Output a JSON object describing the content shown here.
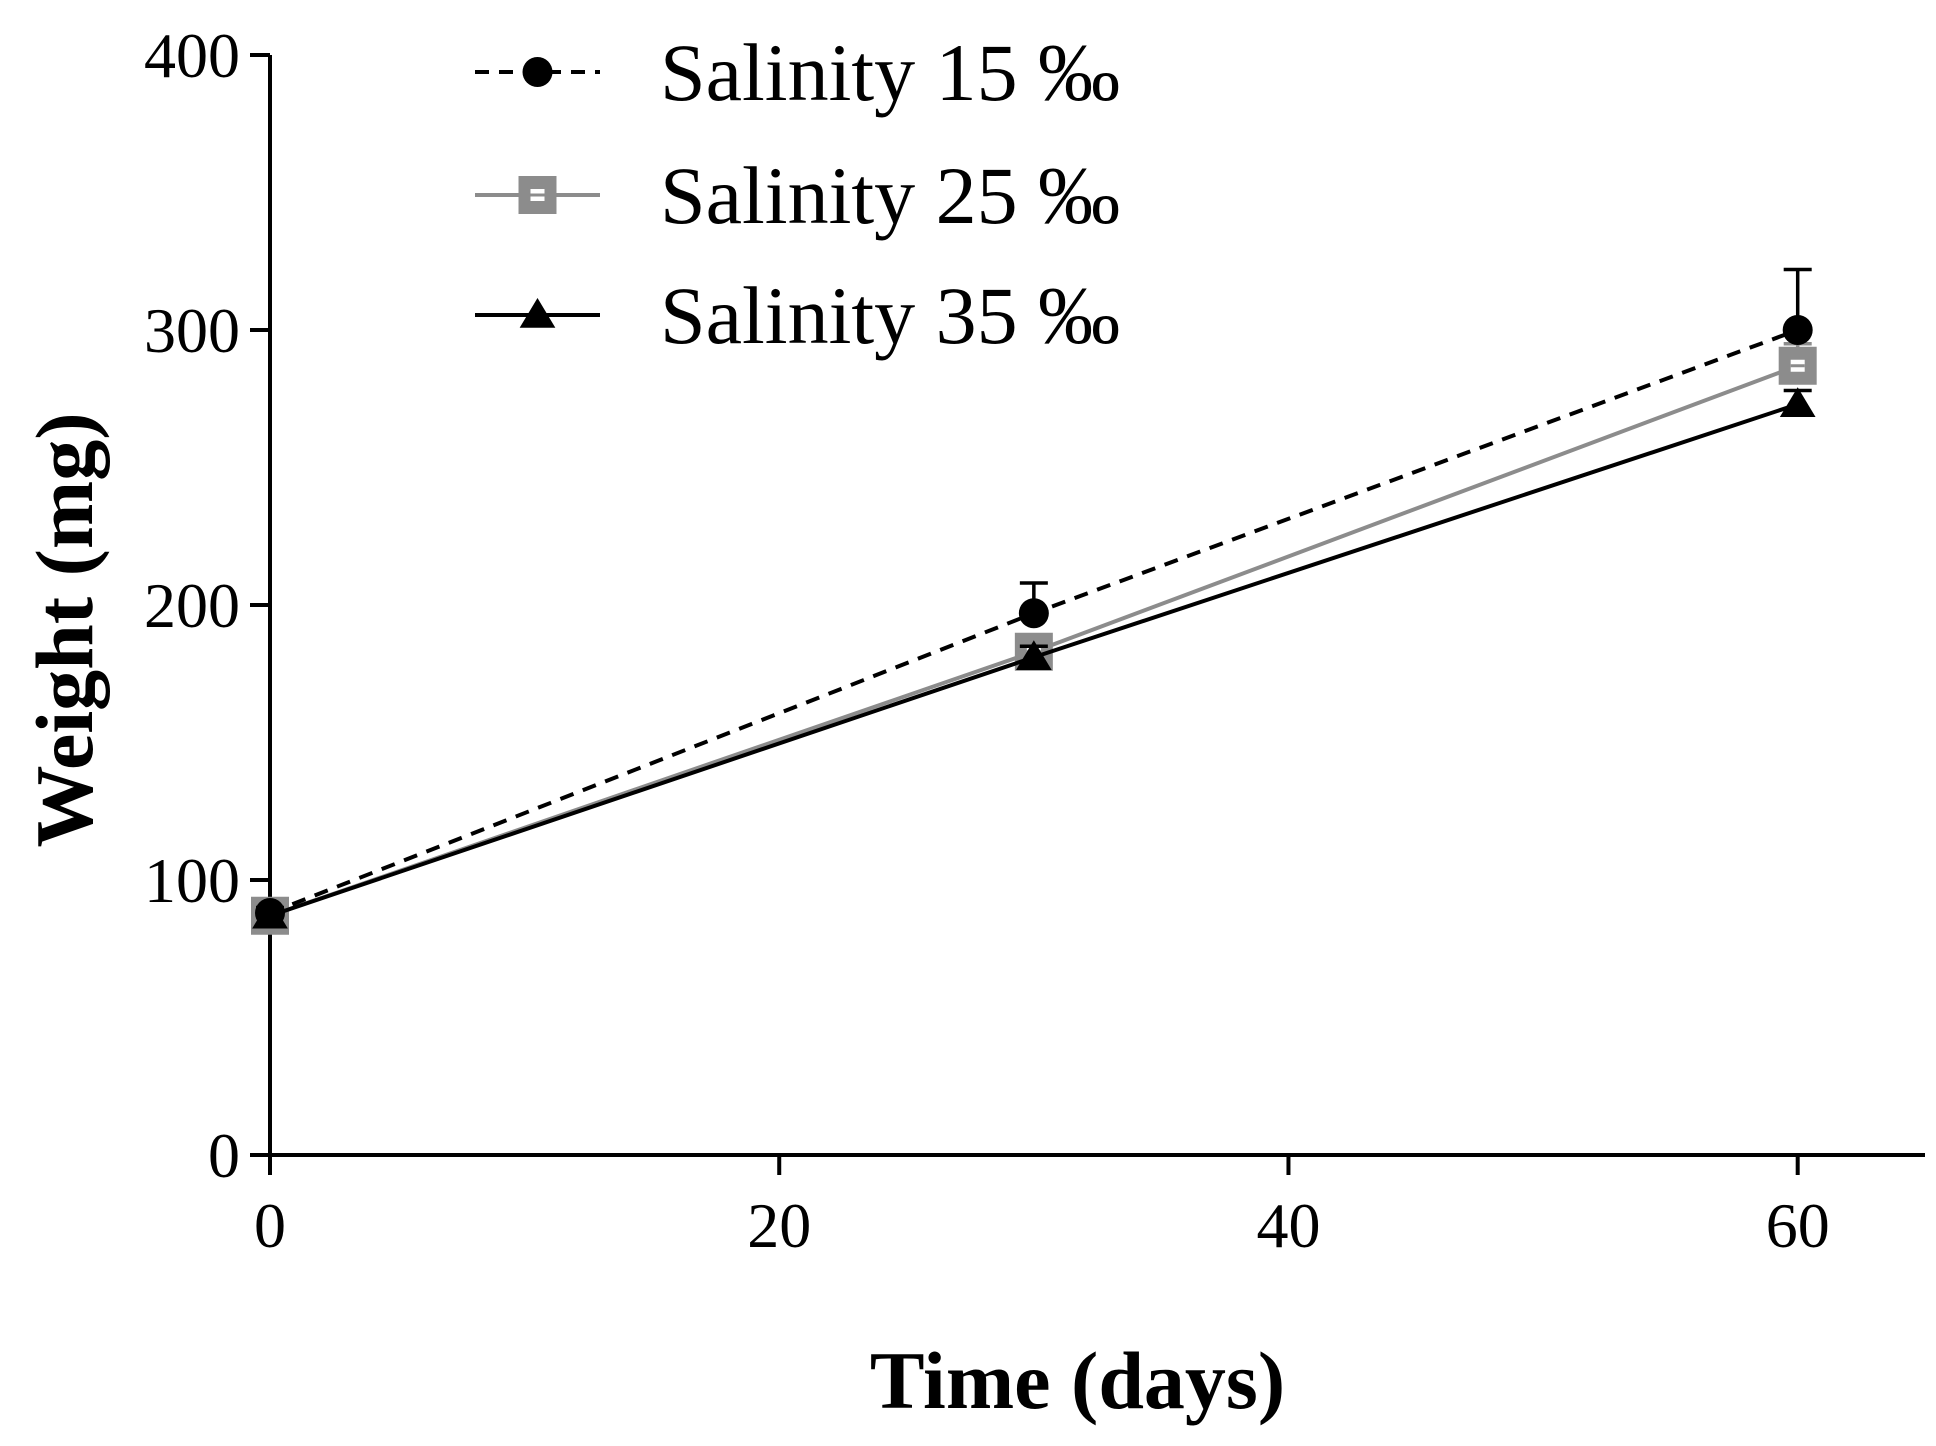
{
  "chart_data": {
    "type": "line",
    "title": "",
    "xlabel": "Time (days)",
    "ylabel": "Weight (mg)",
    "xlim": [
      0,
      65
    ],
    "ylim": [
      0,
      400
    ],
    "xticks": [
      0,
      20,
      40,
      60
    ],
    "yticks": [
      0,
      100,
      200,
      300,
      400
    ],
    "legend_position": "top-center",
    "grid": false,
    "series": [
      {
        "name": "Salinity 15 ‰",
        "x": [
          0,
          30,
          60
        ],
        "y": [
          88,
          197,
          300
        ],
        "error": [
          2,
          11,
          22
        ],
        "marker": "circle",
        "line_style": "dashed",
        "color": "#000000"
      },
      {
        "name": "Salinity 25 ‰",
        "x": [
          0,
          30,
          60
        ],
        "y": [
          87,
          183,
          287
        ],
        "error": [
          2,
          5,
          8
        ],
        "marker": "square",
        "line_style": "solid",
        "color": "#8c8c8c"
      },
      {
        "name": "Salinity 35 ‰",
        "x": [
          0,
          30,
          60
        ],
        "y": [
          87,
          181,
          273
        ],
        "error": [
          2,
          4,
          5
        ],
        "marker": "triangle",
        "line_style": "solid",
        "color": "#000000"
      }
    ]
  }
}
